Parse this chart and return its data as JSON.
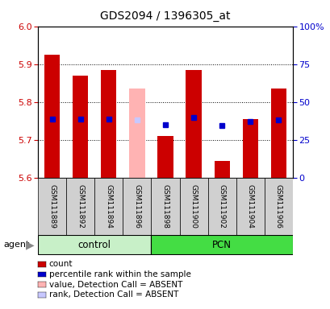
{
  "title": "GDS2094 / 1396305_at",
  "samples": [
    "GSM111889",
    "GSM111892",
    "GSM111894",
    "GSM111896",
    "GSM111898",
    "GSM111900",
    "GSM111902",
    "GSM111904",
    "GSM111906"
  ],
  "bar_values": [
    5.925,
    5.87,
    5.885,
    5.835,
    5.71,
    5.885,
    5.645,
    5.755,
    5.835
  ],
  "bar_colors": [
    "#cc0000",
    "#cc0000",
    "#cc0000",
    "#ffb3b3",
    "#cc0000",
    "#cc0000",
    "#cc0000",
    "#cc0000",
    "#cc0000"
  ],
  "rank_values": [
    5.755,
    5.755,
    5.755,
    5.752,
    5.74,
    5.76,
    5.737,
    5.748,
    5.752
  ],
  "rank_colors": [
    "#0000cc",
    "#0000cc",
    "#0000cc",
    "#c8c8ff",
    "#0000cc",
    "#0000cc",
    "#0000cc",
    "#0000cc",
    "#0000cc"
  ],
  "absent_flags": [
    false,
    false,
    false,
    true,
    false,
    false,
    false,
    false,
    false
  ],
  "ymin": 5.6,
  "ymax": 6.0,
  "yticks": [
    5.6,
    5.7,
    5.8,
    5.9,
    6.0
  ],
  "right_yticks": [
    0,
    25,
    50,
    75,
    100
  ],
  "right_yticklabels": [
    "0",
    "25",
    "50",
    "75",
    "100%"
  ],
  "bar_width": 0.55,
  "control_color": "#c8f0c8",
  "pcn_color": "#44dd44",
  "legend_items": [
    {
      "color": "#cc0000",
      "label": "count"
    },
    {
      "color": "#0000cc",
      "label": "percentile rank within the sample"
    },
    {
      "color": "#ffb3b3",
      "label": "value, Detection Call = ABSENT"
    },
    {
      "color": "#c8c8ff",
      "label": "rank, Detection Call = ABSENT"
    }
  ]
}
